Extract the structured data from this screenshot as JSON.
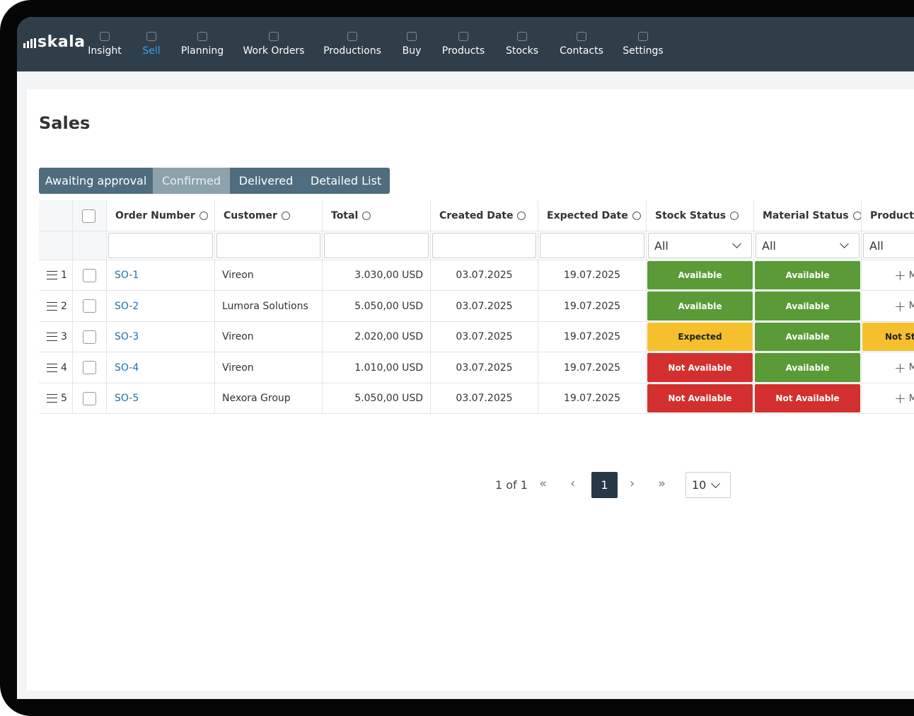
{
  "logo": "skala",
  "nav": [
    {
      "label": "Insight"
    },
    {
      "label": "Sell",
      "active": true
    },
    {
      "label": "Planning"
    },
    {
      "label": "Work Orders"
    },
    {
      "label": "Productions"
    },
    {
      "label": "Buy"
    },
    {
      "label": "Products"
    },
    {
      "label": "Stocks"
    },
    {
      "label": "Contacts"
    },
    {
      "label": "Settings"
    }
  ],
  "page_title": "Sales",
  "tabs": [
    {
      "label": "Awaiting approval"
    },
    {
      "label": "Confirmed",
      "active": true
    },
    {
      "label": "Delivered"
    },
    {
      "label": "Detailed List"
    }
  ],
  "table": {
    "columns": [
      {
        "label": "Order Number"
      },
      {
        "label": "Customer"
      },
      {
        "label": "Total"
      },
      {
        "label": "Created Date"
      },
      {
        "label": "Expected Date"
      },
      {
        "label": "Stock Status",
        "filter": "All"
      },
      {
        "label": "Material Status",
        "filter": "All"
      },
      {
        "label": "Production Status",
        "filter": "All"
      }
    ],
    "rows": [
      {
        "no": 1,
        "order": "SO-1",
        "customer": "Vireon",
        "total": "3.030,00 USD",
        "created": "03.07.2025",
        "expected": "19.07.2025",
        "stock": {
          "label": "Available",
          "color": "#5a9a37"
        },
        "material": {
          "label": "Available",
          "color": "#5a9a37"
        },
        "production": {
          "label": "Make"
        }
      },
      {
        "no": 2,
        "order": "SO-2",
        "customer": "Lumora Solutions",
        "total": "5.050,00 USD",
        "created": "03.07.2025",
        "expected": "19.07.2025",
        "stock": {
          "label": "Available",
          "color": "#5a9a37"
        },
        "material": {
          "label": "Available",
          "color": "#5a9a37"
        },
        "production": {
          "label": "Make"
        }
      },
      {
        "no": 3,
        "order": "SO-3",
        "customer": "Vireon",
        "total": "2.020,00 USD",
        "created": "03.07.2025",
        "expected": "19.07.2025",
        "stock": {
          "label": "Expected",
          "color": "#f6bf2d"
        },
        "material": {
          "label": "Available",
          "color": "#5a9a37"
        },
        "production": {
          "label": "Not Started",
          "color": "#f6bf2d"
        }
      },
      {
        "no": 4,
        "order": "SO-4",
        "customer": "Vireon",
        "total": "1.010,00 USD",
        "created": "03.07.2025",
        "expected": "19.07.2025",
        "stock": {
          "label": "Not Available",
          "color": "#d42f2f"
        },
        "material": {
          "label": "Available",
          "color": "#5a9a37"
        },
        "production": {
          "label": "Make"
        }
      },
      {
        "no": 5,
        "order": "SO-5",
        "customer": "Nexora Group",
        "total": "5.050,00 USD",
        "created": "03.07.2025",
        "expected": "19.07.2025",
        "stock": {
          "label": "Not Available",
          "color": "#d42f2f"
        },
        "material": {
          "label": "Not Available",
          "color": "#d42f2f"
        },
        "production": {
          "label": "Make"
        }
      }
    ]
  },
  "pagination": {
    "summary": "1 of 1",
    "current": "1",
    "page_size": "10"
  }
}
